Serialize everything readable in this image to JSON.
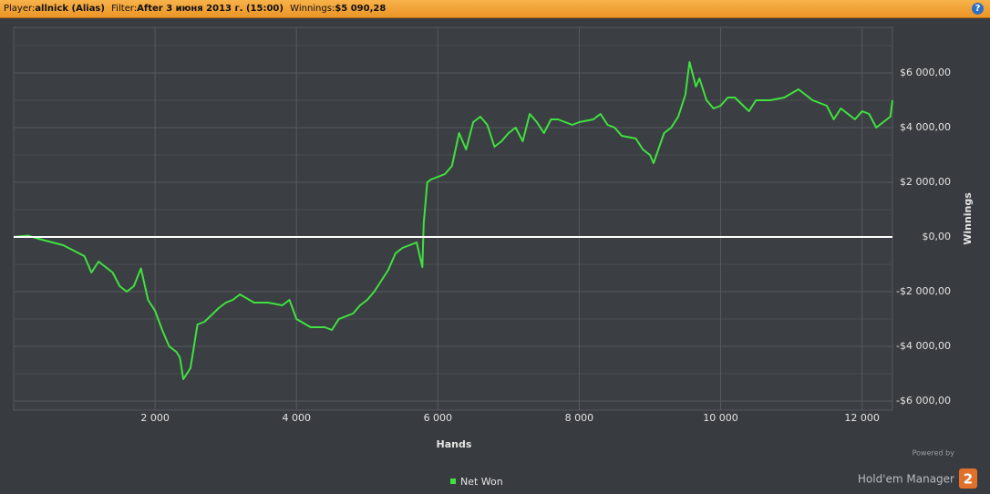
{
  "header": {
    "player_label": "Player:",
    "player": "allnick (Alias)",
    "filter_label": "Filter:",
    "filter": "After 3 июня 2013 г. (15:00)",
    "winnings_label": "Winnings:",
    "winnings": "$5 090,28",
    "help": "?"
  },
  "branding": {
    "powered_by": "Powered by",
    "product": "Hold'em Manager",
    "logo": "2"
  },
  "chart_data": {
    "type": "line",
    "x_label": "Hands",
    "y_label": "Winnings",
    "x": [
      0,
      200,
      400,
      700,
      1000,
      1100,
      1200,
      1400,
      1500,
      1600,
      1700,
      1800,
      1900,
      2000,
      2100,
      2200,
      2300,
      2350,
      2400,
      2500,
      2550,
      2600,
      2700,
      2900,
      3000,
      3100,
      3200,
      3400,
      3600,
      3800,
      3900,
      4000,
      4200,
      4400,
      4500,
      4600,
      4800,
      4900,
      5000,
      5100,
      5300,
      5400,
      5500,
      5600,
      5700,
      5780,
      5800,
      5850,
      5900,
      6000,
      6100,
      6200,
      6300,
      6400,
      6500,
      6600,
      6700,
      6800,
      6900,
      7000,
      7100,
      7200,
      7300,
      7400,
      7500,
      7600,
      7700,
      7900,
      8000,
      8200,
      8300,
      8400,
      8500,
      8600,
      8800,
      8900,
      9000,
      9050,
      9200,
      9300,
      9400,
      9500,
      9560,
      9650,
      9700,
      9800,
      9900,
      10000,
      10100,
      10200,
      10400,
      10500,
      10700,
      10900,
      11100,
      11300,
      11500,
      11600,
      11700,
      11900,
      12000,
      12100,
      12200,
      12300,
      12400,
      12430
    ],
    "series": [
      {
        "name": "Net Won",
        "color": "#3fe23f",
        "values": [
          0,
          50,
          -100,
          -300,
          -700,
          -1300,
          -900,
          -1300,
          -1800,
          -2000,
          -1800,
          -1150,
          -2300,
          -2700,
          -3400,
          -4000,
          -4200,
          -4400,
          -5200,
          -4800,
          -4000,
          -3200,
          -3100,
          -2600,
          -2400,
          -2300,
          -2100,
          -2400,
          -2400,
          -2500,
          -2300,
          -3000,
          -3300,
          -3300,
          -3400,
          -3000,
          -2800,
          -2500,
          -2300,
          -2000,
          -1200,
          -600,
          -400,
          -300,
          -200,
          -1100,
          500,
          2000,
          2100,
          2200,
          2300,
          2600,
          3800,
          3200,
          4200,
          4400,
          4100,
          3300,
          3500,
          3800,
          4000,
          3500,
          4500,
          4200,
          3800,
          4300,
          4300,
          4100,
          4200,
          4300,
          4500,
          4100,
          4000,
          3700,
          3600,
          3200,
          3000,
          2700,
          3800,
          4000,
          4400,
          5200,
          6400,
          5500,
          5800,
          5000,
          4700,
          4800,
          5100,
          5100,
          4600,
          5000,
          5000,
          5100,
          5400,
          5000,
          4800,
          4300,
          4700,
          4300,
          4600,
          4500,
          4000,
          4200,
          4400,
          5000
        ]
      }
    ],
    "xlim": [
      0,
      12430
    ],
    "ylim": [
      -6333,
      7667
    ],
    "xticks": [
      {
        "value": 2000,
        "label": "2 000"
      },
      {
        "value": 4000,
        "label": "4 000"
      },
      {
        "value": 6000,
        "label": "6 000"
      },
      {
        "value": 8000,
        "label": "8 000"
      },
      {
        "value": 10000,
        "label": "10 000"
      },
      {
        "value": 12000,
        "label": "12 000"
      }
    ],
    "yticks": [
      {
        "value": -6000,
        "label": "-$6 000,00"
      },
      {
        "value": -4000,
        "label": "-$4 000,00"
      },
      {
        "value": -2000,
        "label": "-$2 000,00"
      },
      {
        "value": 0,
        "label": "$0,00"
      },
      {
        "value": 2000,
        "label": "$2 000,00"
      },
      {
        "value": 4000,
        "label": "$4 000,00"
      },
      {
        "value": 6000,
        "label": "$6 000,00"
      }
    ],
    "yminor": [
      -5000,
      -3000,
      -1000,
      1000,
      3000,
      5000,
      7000
    ],
    "grid": true,
    "legend": "bottom"
  }
}
